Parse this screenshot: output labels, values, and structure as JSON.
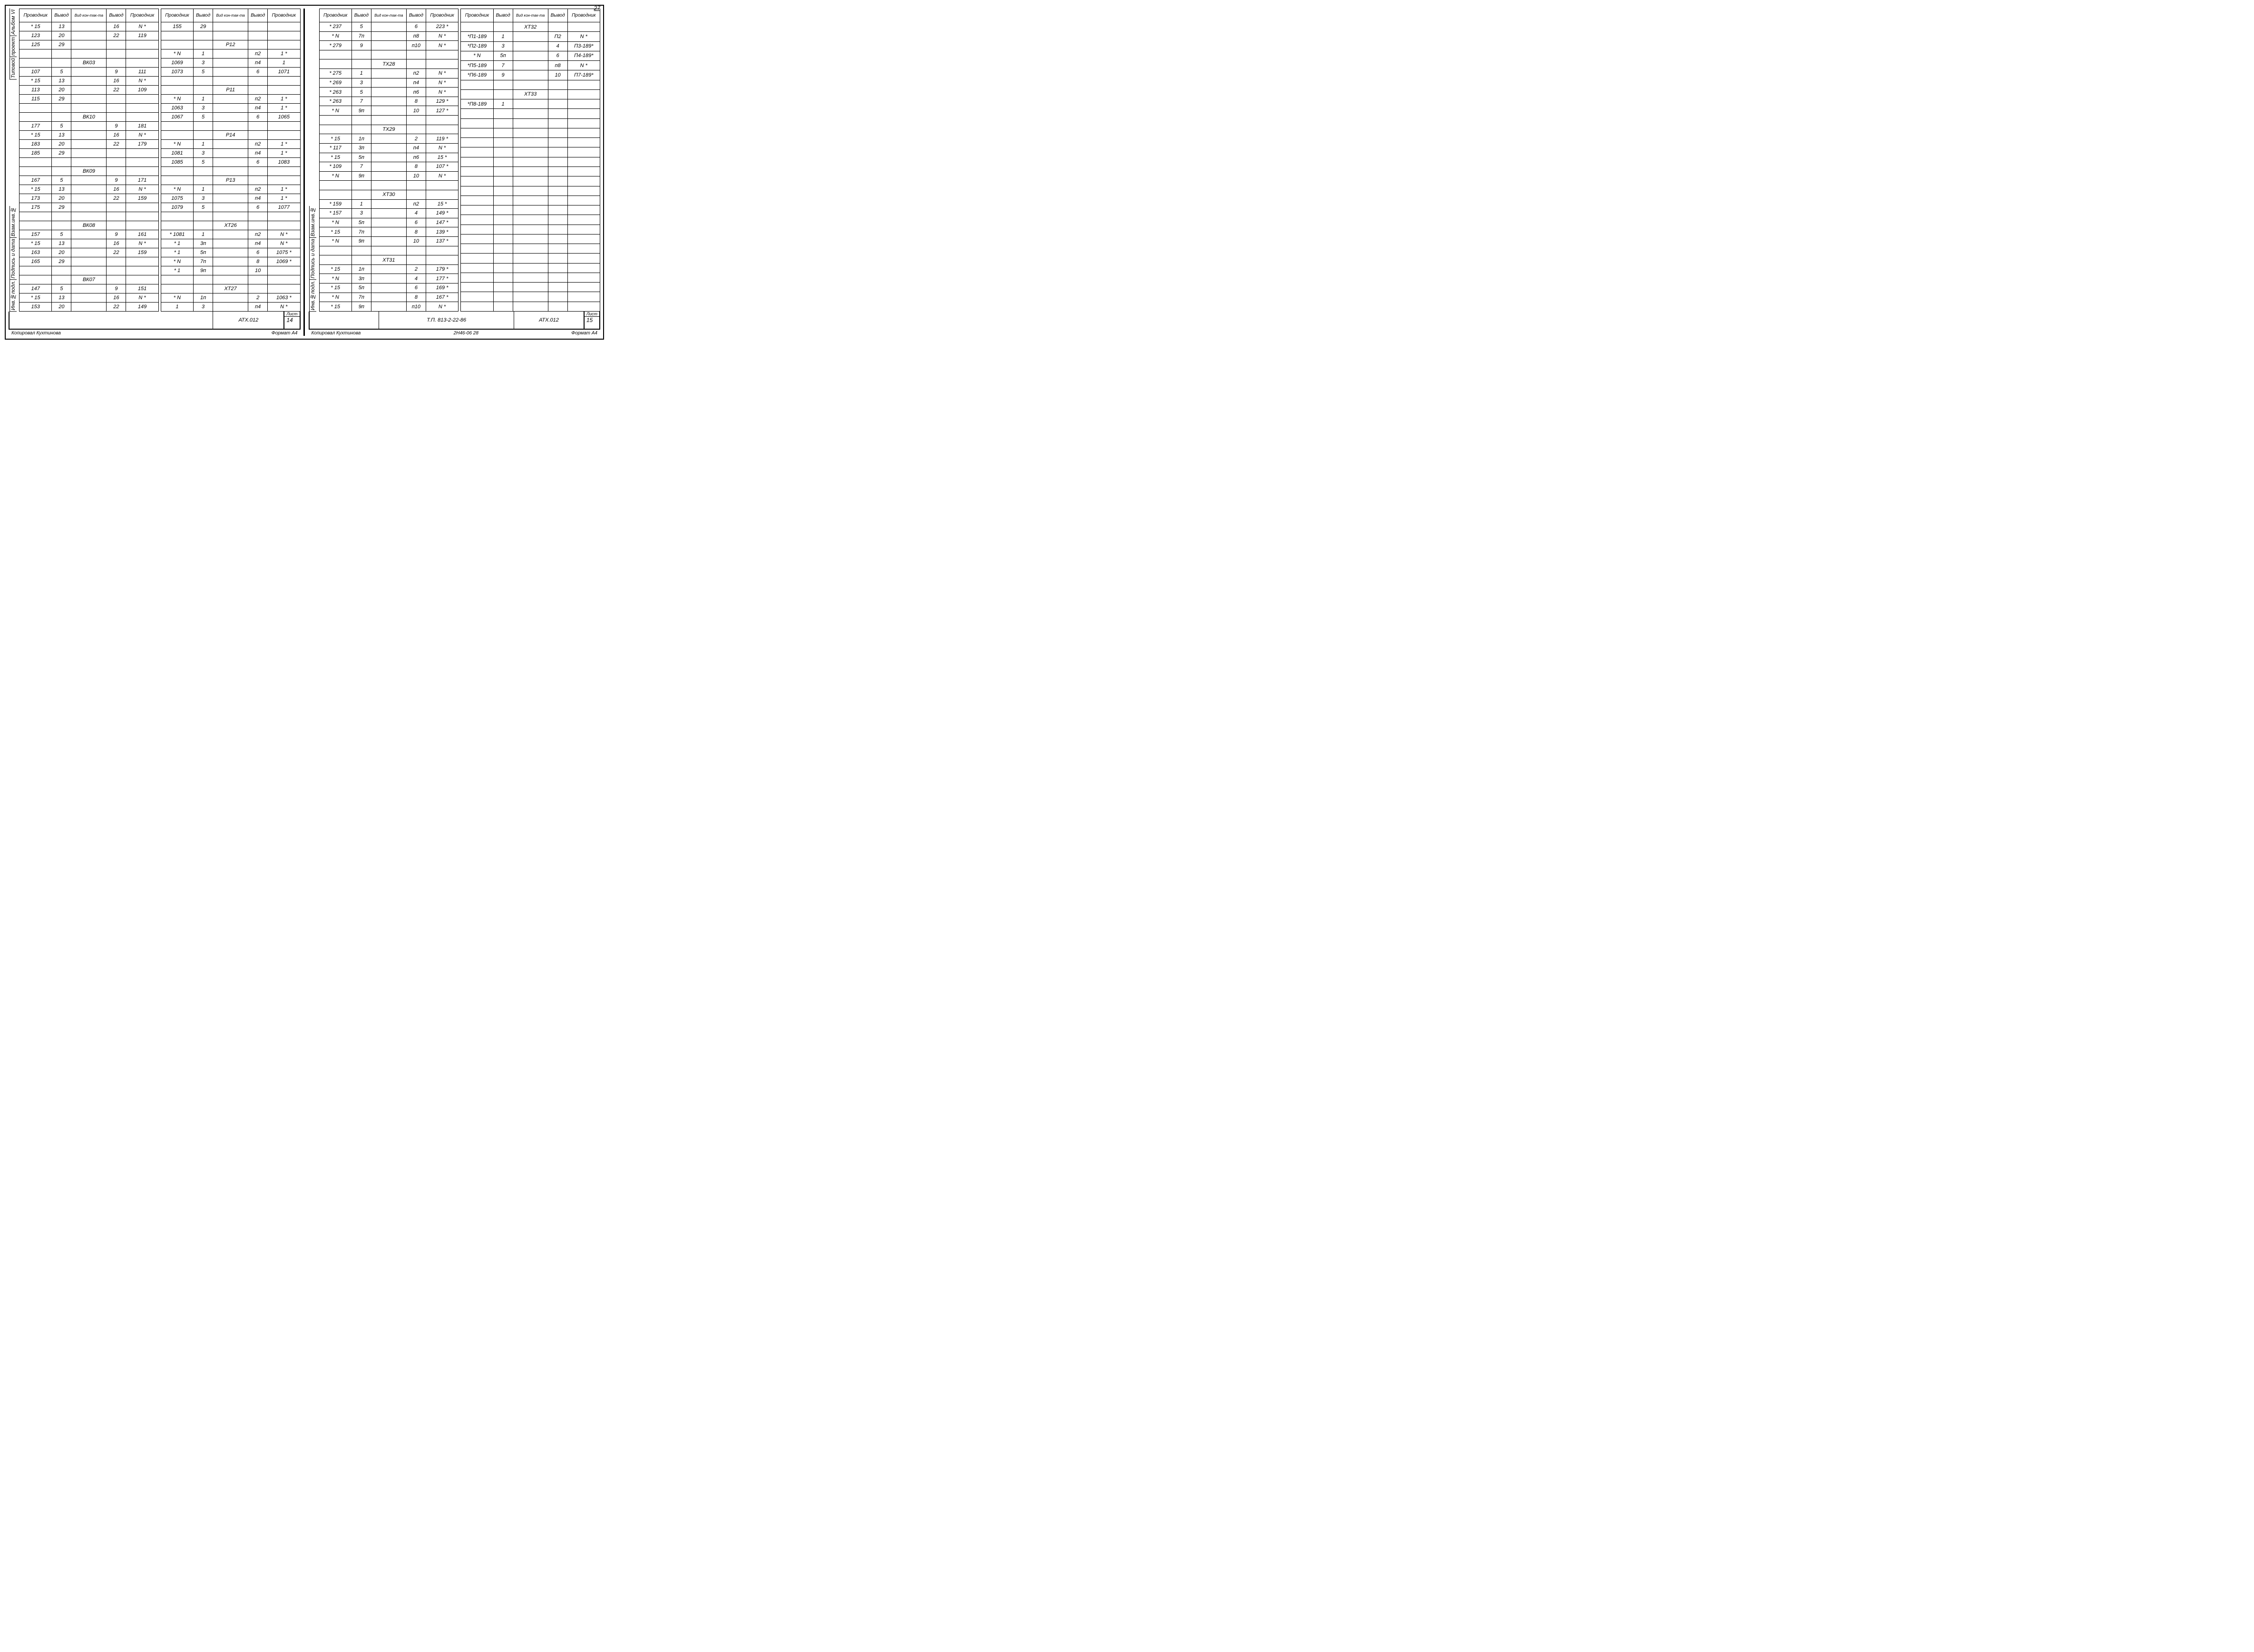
{
  "page_number": "27",
  "headers": {
    "prov": "Проводник",
    "vyv": "Вывод",
    "kon": "Вид кон-так-та"
  },
  "side_labels_left": [
    "Альбом VI",
    "проект",
    "Типовой",
    "Взам.инв.№",
    "Подпись и дата",
    "Инв.№подл."
  ],
  "side_labels_right": [
    "Взам.инв.№",
    "Подпись и дата",
    "Инв.№подл."
  ],
  "left_page": {
    "table1": [
      [
        "* 15",
        "13",
        "",
        "16",
        "N *"
      ],
      [
        "123",
        "20",
        "",
        "22",
        "119"
      ],
      [
        "125",
        "29",
        "",
        "",
        ""
      ],
      [
        "",
        "",
        "",
        "",
        ""
      ],
      [
        "",
        "",
        "ВК03",
        "",
        ""
      ],
      [
        "107",
        "5",
        "",
        "9",
        "111"
      ],
      [
        "* 15",
        "13",
        "",
        "16",
        "N *"
      ],
      [
        "113",
        "20",
        "",
        "22",
        "109"
      ],
      [
        "115",
        "29",
        "",
        "",
        ""
      ],
      [
        "",
        "",
        "",
        "",
        ""
      ],
      [
        "",
        "",
        "ВК10",
        "",
        ""
      ],
      [
        "177",
        "5",
        "",
        "9",
        "181"
      ],
      [
        "* 15",
        "13",
        "",
        "16",
        "N *"
      ],
      [
        "183",
        "20",
        "",
        "22",
        "179"
      ],
      [
        "185",
        "29",
        "",
        "",
        ""
      ],
      [
        "",
        "",
        "",
        "",
        ""
      ],
      [
        "",
        "",
        "ВК09",
        "",
        ""
      ],
      [
        "167",
        "5",
        "",
        "9",
        "171"
      ],
      [
        "* 15",
        "13",
        "",
        "16",
        "N *"
      ],
      [
        "173",
        "20",
        "",
        "22",
        "159"
      ],
      [
        "175",
        "29",
        "",
        "",
        ""
      ],
      [
        "",
        "",
        "",
        "",
        ""
      ],
      [
        "",
        "",
        "ВК08",
        "",
        ""
      ],
      [
        "157",
        "5",
        "",
        "9",
        "161"
      ],
      [
        "* 15",
        "13",
        "",
        "16",
        "N *"
      ],
      [
        "163",
        "20",
        "",
        "22",
        "159"
      ],
      [
        "165",
        "29",
        "",
        "",
        ""
      ],
      [
        "",
        "",
        "",
        "",
        ""
      ],
      [
        "",
        "",
        "ВК07",
        "",
        ""
      ],
      [
        "147",
        "5",
        "",
        "9",
        "151"
      ],
      [
        "* 15",
        "13",
        "",
        "16",
        "N *"
      ],
      [
        "153",
        "20",
        "",
        "22",
        "149"
      ]
    ],
    "table2": [
      [
        "155",
        "29",
        "",
        "",
        ""
      ],
      [
        "",
        "",
        "",
        "",
        ""
      ],
      [
        "",
        "",
        "Р12",
        "",
        ""
      ],
      [
        "* N",
        "1",
        "",
        "п2",
        "1 *"
      ],
      [
        "1069",
        "3",
        "",
        "п4",
        "1"
      ],
      [
        "1073",
        "5",
        "",
        "6",
        "1071"
      ],
      [
        "",
        "",
        "",
        "",
        ""
      ],
      [
        "",
        "",
        "Р11",
        "",
        ""
      ],
      [
        "* N",
        "1",
        "",
        "п2",
        "1 *"
      ],
      [
        "1063",
        "3",
        "",
        "п4",
        "1 *"
      ],
      [
        "1067",
        "5",
        "",
        "6",
        "1065"
      ],
      [
        "",
        "",
        "",
        "",
        ""
      ],
      [
        "",
        "",
        "Р14",
        "",
        ""
      ],
      [
        "* N",
        "1",
        "",
        "п2",
        "1 *"
      ],
      [
        "1081",
        "3",
        "",
        "п4",
        "1 *"
      ],
      [
        "1085",
        "5",
        "",
        "6",
        "1083"
      ],
      [
        "",
        "",
        "",
        "",
        ""
      ],
      [
        "",
        "",
        "Р13",
        "",
        ""
      ],
      [
        "* N",
        "1",
        "",
        "п2",
        "1 *"
      ],
      [
        "1075",
        "3",
        "",
        "п4",
        "1 *"
      ],
      [
        "1079",
        "5",
        "",
        "6",
        "1077"
      ],
      [
        "",
        "",
        "",
        "",
        ""
      ],
      [
        "",
        "",
        "ХТ26",
        "",
        ""
      ],
      [
        "* 1081",
        "1",
        "",
        "п2",
        "N *"
      ],
      [
        "* 1",
        "3п",
        "",
        "п4",
        "N *"
      ],
      [
        "* 1",
        "5п",
        "",
        "6",
        "1075 *"
      ],
      [
        "* N",
        "7п",
        "",
        "8",
        "1069 *"
      ],
      [
        "* 1",
        "9п",
        "",
        "10",
        ""
      ],
      [
        "",
        "",
        "",
        "",
        ""
      ],
      [
        "",
        "",
        "ХТ27",
        "",
        ""
      ],
      [
        "* N",
        "1п",
        "",
        "2",
        "1063 *"
      ],
      [
        "1",
        "3",
        "",
        "п4",
        "N *"
      ]
    ],
    "footer": {
      "code": "АТХ.012",
      "sheet_label": "Лист",
      "sheet": "14"
    },
    "foot_copy": "Копировал Кухтинова",
    "foot_fmt": "Формат А4"
  },
  "right_page": {
    "table1": [
      [
        "* 237",
        "5",
        "",
        "6",
        "223 *"
      ],
      [
        "* N",
        "7п",
        "",
        "п8",
        "N *"
      ],
      [
        "* 279",
        "9",
        "",
        "п10",
        "N *"
      ],
      [
        "",
        "",
        "",
        "",
        ""
      ],
      [
        "",
        "",
        "ТХ28",
        "",
        ""
      ],
      [
        "* 275",
        "1",
        "",
        "п2",
        "N *"
      ],
      [
        "* 269",
        "3",
        "",
        "п4",
        "N *"
      ],
      [
        "* 263",
        "5",
        "",
        "п6",
        "N *"
      ],
      [
        "* 263",
        "7",
        "",
        "8",
        "129 *"
      ],
      [
        "* N",
        "9п",
        "",
        "10",
        "127 *"
      ],
      [
        "",
        "",
        "",
        "",
        ""
      ],
      [
        "",
        "",
        "ТХ29",
        "",
        ""
      ],
      [
        "* 15",
        "1п",
        "",
        "2",
        "119 *"
      ],
      [
        "* 117",
        "3п",
        "",
        "п4",
        "N *"
      ],
      [
        "* 15",
        "5п",
        "",
        "п6",
        "15 *"
      ],
      [
        "* 109",
        "7",
        "",
        "8",
        "107 *"
      ],
      [
        "* N",
        "9п",
        "",
        "10",
        "N *"
      ],
      [
        "",
        "",
        "",
        "",
        ""
      ],
      [
        "",
        "",
        "ХТ30",
        "",
        ""
      ],
      [
        "* 159",
        "1",
        "",
        "п2",
        "15 *"
      ],
      [
        "* 157",
        "3",
        "",
        "4",
        "149 *"
      ],
      [
        "* N",
        "5п",
        "",
        "6",
        "147 *"
      ],
      [
        "* 15",
        "7п",
        "",
        "8",
        "139 *"
      ],
      [
        "* N",
        "9п",
        "",
        "10",
        "137 *"
      ],
      [
        "",
        "",
        "",
        "",
        ""
      ],
      [
        "",
        "",
        "ХТ31",
        "",
        ""
      ],
      [
        "* 15",
        "1п",
        "",
        "2",
        "179 *"
      ],
      [
        "* N",
        "3п",
        "",
        "4",
        "177 *"
      ],
      [
        "* 15",
        "5п",
        "",
        "6",
        "169 *"
      ],
      [
        "* N",
        "7п",
        "",
        "8",
        "167 *"
      ],
      [
        "* 15",
        "9п",
        "",
        "п10",
        "N *"
      ]
    ],
    "table2": [
      [
        "",
        "",
        "ХТ32",
        "",
        ""
      ],
      [
        "*П1-189",
        "1",
        "",
        "П2",
        "N *"
      ],
      [
        "*П2-189",
        "3",
        "",
        "4",
        "П3-189*"
      ],
      [
        "* N",
        "5п",
        "",
        "6",
        "П4-189*"
      ],
      [
        "*П5-189",
        "7",
        "",
        "п8",
        "N *"
      ],
      [
        "*П6-189",
        "9",
        "",
        "10",
        "П7-189*"
      ],
      [
        "",
        "",
        "",
        "",
        ""
      ],
      [
        "",
        "",
        "ХТ33",
        "",
        ""
      ],
      [
        "*П8-189",
        "1",
        "",
        "",
        ""
      ],
      [
        "",
        "",
        "",
        "",
        ""
      ],
      [
        "",
        "",
        "",
        "",
        ""
      ],
      [
        "",
        "",
        "",
        "",
        ""
      ],
      [
        "",
        "",
        "",
        "",
        ""
      ],
      [
        "",
        "",
        "",
        "",
        ""
      ],
      [
        "",
        "",
        "",
        "",
        ""
      ],
      [
        "",
        "",
        "",
        "",
        ""
      ],
      [
        "",
        "",
        "",
        "",
        ""
      ],
      [
        "",
        "",
        "",
        "",
        ""
      ],
      [
        "",
        "",
        "",
        "",
        ""
      ],
      [
        "",
        "",
        "",
        "",
        ""
      ],
      [
        "",
        "",
        "",
        "",
        ""
      ],
      [
        "",
        "",
        "",
        "",
        ""
      ],
      [
        "",
        "",
        "",
        "",
        ""
      ],
      [
        "",
        "",
        "",
        "",
        ""
      ],
      [
        "",
        "",
        "",
        "",
        ""
      ],
      [
        "",
        "",
        "",
        "",
        ""
      ],
      [
        "",
        "",
        "",
        "",
        ""
      ],
      [
        "",
        "",
        "",
        "",
        ""
      ],
      [
        "",
        "",
        "",
        "",
        ""
      ],
      [
        "",
        "",
        "",
        "",
        ""
      ]
    ],
    "footer": {
      "doc": "Т.П. 813-2-22-86",
      "code": "АТХ.012",
      "sheet_label": "Лист",
      "sheet": "15"
    },
    "foot_copy": "Копировал Кухтинова",
    "foot_mid": "2Н46-06   28",
    "foot_fmt": "Формат А4"
  }
}
